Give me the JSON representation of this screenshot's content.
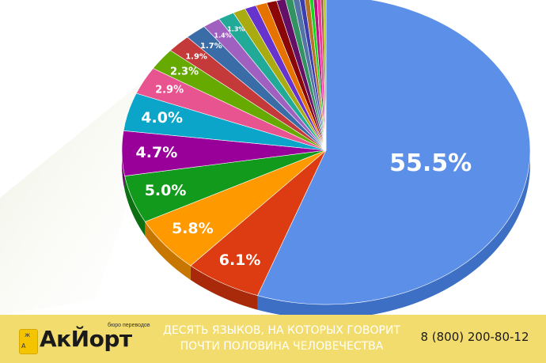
{
  "chart_data": {
    "type": "pie",
    "slices": [
      {
        "value": 55.5,
        "label": "55.5%",
        "color": "#5b8fe8",
        "dark": "#3d6fc4"
      },
      {
        "value": 6.1,
        "label": "6.1%",
        "color": "#dd3b12",
        "dark": "#a82a0a"
      },
      {
        "value": 5.8,
        "label": "5.8%",
        "color": "#ff9900",
        "dark": "#c77700"
      },
      {
        "value": 5.0,
        "label": "5.0%",
        "color": "#129a1c",
        "dark": "#0c7013"
      },
      {
        "value": 4.7,
        "label": "4.7%",
        "color": "#990099",
        "dark": "#6e006e"
      },
      {
        "value": 4.0,
        "label": "4.0%",
        "color": "#0aa5c8",
        "dark": "#07809c"
      },
      {
        "value": 2.9,
        "label": "2.9%",
        "color": "#e8548f",
        "dark": "#b83f6f"
      },
      {
        "value": 2.3,
        "label": "2.3%",
        "color": "#66aa00",
        "dark": "#4d8000"
      },
      {
        "value": 1.9,
        "label": "1.9%",
        "color": "#c43a3a",
        "dark": "#962b2b"
      },
      {
        "value": 1.7,
        "label": "1.7%",
        "color": "#3a6da8",
        "dark": "#2a5080"
      },
      {
        "value": 1.4,
        "label": "1.4%",
        "color": "#a060c0",
        "dark": "#7a4494"
      },
      {
        "value": 1.3,
        "label": "1.3%",
        "color": "#22aa99",
        "dark": "#187a6e"
      },
      {
        "value": 1.0,
        "label": "",
        "color": "#aaaa11",
        "dark": "#80800c"
      },
      {
        "value": 0.9,
        "label": "",
        "color": "#6633cc",
        "dark": "#4a2494"
      },
      {
        "value": 0.9,
        "label": "",
        "color": "#e67300",
        "dark": "#b35900"
      },
      {
        "value": 0.8,
        "label": "",
        "color": "#8b0707",
        "dark": "#600505"
      },
      {
        "value": 0.7,
        "label": "",
        "color": "#651067",
        "dark": "#450b46"
      },
      {
        "value": 0.6,
        "label": "",
        "color": "#329262",
        "dark": "#236845"
      },
      {
        "value": 0.5,
        "label": "",
        "color": "#5574a6",
        "dark": "#3d537a"
      },
      {
        "value": 0.4,
        "label": "",
        "color": "#3b3eac",
        "dark": "#2a2c7c"
      },
      {
        "value": 0.4,
        "label": "",
        "color": "#b77322",
        "dark": "#8a5619"
      },
      {
        "value": 0.3,
        "label": "",
        "color": "#16d620",
        "dark": "#10a017"
      },
      {
        "value": 0.3,
        "label": "",
        "color": "#b91383",
        "dark": "#8a0e62"
      },
      {
        "value": 0.3,
        "label": "",
        "color": "#f4359e",
        "dark": "#c22a7e"
      },
      {
        "value": 0.2,
        "label": "",
        "color": "#9c5935",
        "dark": "#744227"
      },
      {
        "value": 0.2,
        "label": "",
        "color": "#a9c413",
        "dark": "#7f930e"
      }
    ]
  },
  "banner": {
    "logo_name": "АкЙорт",
    "logo_subtitle": "бюро переводов",
    "headline_line1": "ДЕСЯТЬ ЯЗЫКОВ, НА КОТОРЫХ ГОВОРИТ",
    "headline_line2": "ПОЧТИ ПОЛОВИНА ЧЕЛОВЕЧЕСТВА",
    "phone": "8 (800) 200-80-12",
    "colors": {
      "background": "#f3dc6e",
      "headline": "#ffffff",
      "badge": "#f5c400"
    }
  }
}
